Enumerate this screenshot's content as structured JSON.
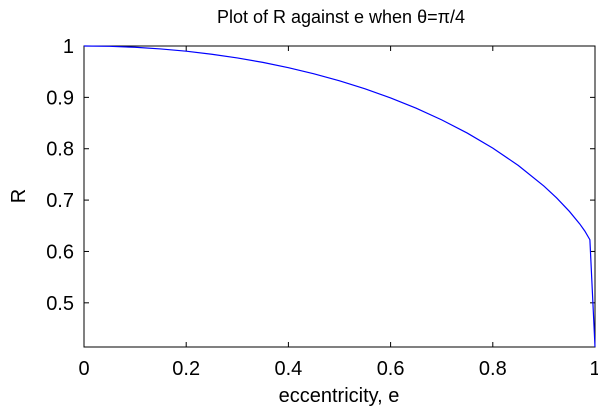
{
  "chart_data": {
    "type": "line",
    "title": "Plot of R against e when θ=π/4",
    "xlabel": "eccentricity, e",
    "ylabel": "R",
    "xlim": [
      0,
      1
    ],
    "ylim": [
      0.414,
      1
    ],
    "xticks": [
      0,
      0.2,
      0.4,
      0.6,
      0.8,
      1
    ],
    "xtick_labels": [
      "0",
      "0.2",
      "0.4",
      "0.6",
      "0.8",
      "1"
    ],
    "yticks": [
      0.5,
      0.6,
      0.7,
      0.8,
      0.9,
      1
    ],
    "ytick_labels": [
      "0.5",
      "0.6",
      "0.7",
      "0.8",
      "0.9",
      "1"
    ],
    "grid": false,
    "series": [
      {
        "color": "#0000ff",
        "x": [
          0,
          0.05,
          0.1,
          0.15,
          0.2,
          0.25,
          0.3,
          0.35,
          0.4,
          0.45,
          0.5,
          0.55,
          0.6,
          0.65,
          0.7,
          0.75,
          0.8,
          0.85,
          0.9,
          0.925,
          0.95,
          0.97,
          0.98,
          0.99,
          1
        ],
        "y": [
          1,
          0.9994,
          0.9975,
          0.9943,
          0.9899,
          0.984,
          0.9768,
          0.9681,
          0.9578,
          0.9459,
          0.9322,
          0.9166,
          0.8989,
          0.8789,
          0.8562,
          0.8305,
          0.8012,
          0.7674,
          0.7274,
          0.7042,
          0.6779,
          0.6538,
          0.6399,
          0.6228,
          0.4142
        ]
      }
    ]
  }
}
